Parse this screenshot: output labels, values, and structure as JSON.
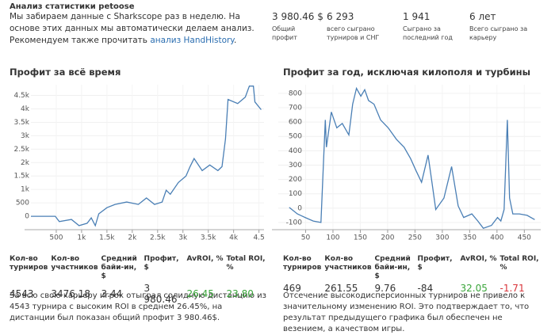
{
  "header": {
    "title": "Анализ статистики petoose",
    "text_before": "Мы забираем данные с Sharkscope раз в неделю. На основе этих данных мы автоматически делаем анализ. Рекомендуем также прочитать ",
    "link": "анализ HandHistory",
    "text_after": "."
  },
  "stats": [
    {
      "value": "3 980.46 $",
      "label": "Общий профит"
    },
    {
      "value": "6 293",
      "label": "всего сыграно турниров и СНГ"
    },
    {
      "value": "1 941",
      "label": "Сыграно за последний год"
    },
    {
      "value": "6 лет",
      "label": "Всего сыграно за карьеру"
    }
  ],
  "chart_data": [
    {
      "type": "line",
      "title": "Профит за всё время",
      "color": "#4a7fb5",
      "grid": true,
      "x": [
        0,
        480,
        560,
        800,
        950,
        1110,
        1190,
        1270,
        1340,
        1500,
        1660,
        1890,
        2120,
        2280,
        2440,
        2590,
        2670,
        2750,
        2910,
        3060,
        3140,
        3220,
        3380,
        3530,
        3690,
        3770,
        3840,
        3890,
        4080,
        4230,
        4310,
        4390,
        4420,
        4543
      ],
      "values": [
        0,
        0,
        -200,
        -120,
        -350,
        -260,
        -60,
        -350,
        90,
        320,
        440,
        530,
        440,
        680,
        440,
        530,
        970,
        820,
        1260,
        1500,
        1850,
        2150,
        1700,
        1910,
        1700,
        1850,
        2880,
        4350,
        4200,
        4440,
        4850,
        4850,
        4260,
        3970
      ],
      "xlim": [
        0,
        4600
      ],
      "xticks": [
        500,
        {
          "value": 1000,
          "label": "1k"
        },
        {
          "value": 1500,
          "label": "1.5k"
        },
        {
          "value": 2000,
          "label": "2k"
        },
        {
          "value": 2500,
          "label": "2.5k"
        },
        {
          "value": 3000,
          "label": "3k"
        },
        {
          "value": 3500,
          "label": "3.5k"
        },
        {
          "value": 4000,
          "label": "4k"
        },
        {
          "value": 4500,
          "label": "4.5"
        }
      ],
      "ylim": [
        -500,
        4900
      ],
      "yticks": [
        0,
        500,
        {
          "value": 1000,
          "label": "1k"
        },
        {
          "value": 1500,
          "label": "1.5k"
        },
        {
          "value": 2000,
          "label": "2k"
        },
        {
          "value": 2500,
          "label": "2.5k"
        },
        {
          "value": 3000,
          "label": "3k"
        },
        {
          "value": 3500,
          "label": "3.5k"
        },
        {
          "value": 4000,
          "label": "4k"
        },
        {
          "value": 4500,
          "label": "4.5k"
        }
      ]
    },
    {
      "type": "line",
      "title": "Профит за год, исключая килополя и турбины",
      "color": "#4a7fb5",
      "grid": true,
      "x": [
        20,
        35,
        49,
        64,
        78,
        83,
        86,
        88,
        97,
        107,
        117,
        129,
        136,
        143,
        151,
        158,
        165,
        175,
        187,
        201,
        216,
        230,
        242,
        252,
        262,
        274,
        281,
        288,
        303,
        317,
        329,
        339,
        354,
        365,
        375,
        390,
        401,
        407,
        413,
        419,
        423,
        429,
        441,
        455,
        469
      ],
      "values": [
        5,
        -40,
        -65,
        -90,
        -100,
        345,
        615,
        425,
        670,
        560,
        590,
        510,
        725,
        835,
        780,
        825,
        750,
        725,
        615,
        560,
        480,
        425,
        345,
        260,
        180,
        370,
        180,
        -10,
        70,
        290,
        15,
        -65,
        -40,
        -90,
        -140,
        -120,
        -65,
        -90,
        -10,
        615,
        70,
        -40,
        -40,
        -50,
        -80
      ],
      "xlim": [
        0,
        480
      ],
      "xticks": [
        50,
        100,
        150,
        200,
        250,
        300,
        350,
        400,
        450
      ],
      "ylim": [
        -150,
        860
      ],
      "yticks": [
        -100,
        0,
        100,
        200,
        300,
        400,
        500,
        600,
        700,
        800
      ]
    }
  ],
  "tables": [
    {
      "headers": [
        "Кол-во турниров",
        "Кол-во участников",
        "Средний байи-ин, $",
        "Профит, $",
        "AvROI, %",
        "Total ROI, %"
      ],
      "cells": [
        "4543",
        "3476.18",
        "3.44",
        "3 980.46",
        "26.45",
        "23.80"
      ],
      "colors": {
        "4": "#3aa53a",
        "5": "#3aa53a"
      }
    },
    {
      "headers": [
        "Кол-во турниров",
        "Кол-во участников",
        "Средний байи-ин, $",
        "Профит, $",
        "AvROI, %",
        "Total ROI, %"
      ],
      "cells": [
        "469",
        "261.55",
        "9.76",
        "-84",
        "32.05",
        "-1.71"
      ],
      "colors": {
        "4": "#3aa53a",
        "5": "#d9343a"
      }
    }
  ],
  "notes": [
    "За всю свою карьеру игрок отыграл солидную дистанцию из 4543 турнира с высоким ROI в среднем 26.45%, на дистанции был показан общий профит 3 980.46$.",
    "Отсечение высокодисперсионных турниров не привело к значительному изменению ROI. Это подтверждает то, что результат предыдущего графика был обеспечен не везением, а качеством игры."
  ]
}
